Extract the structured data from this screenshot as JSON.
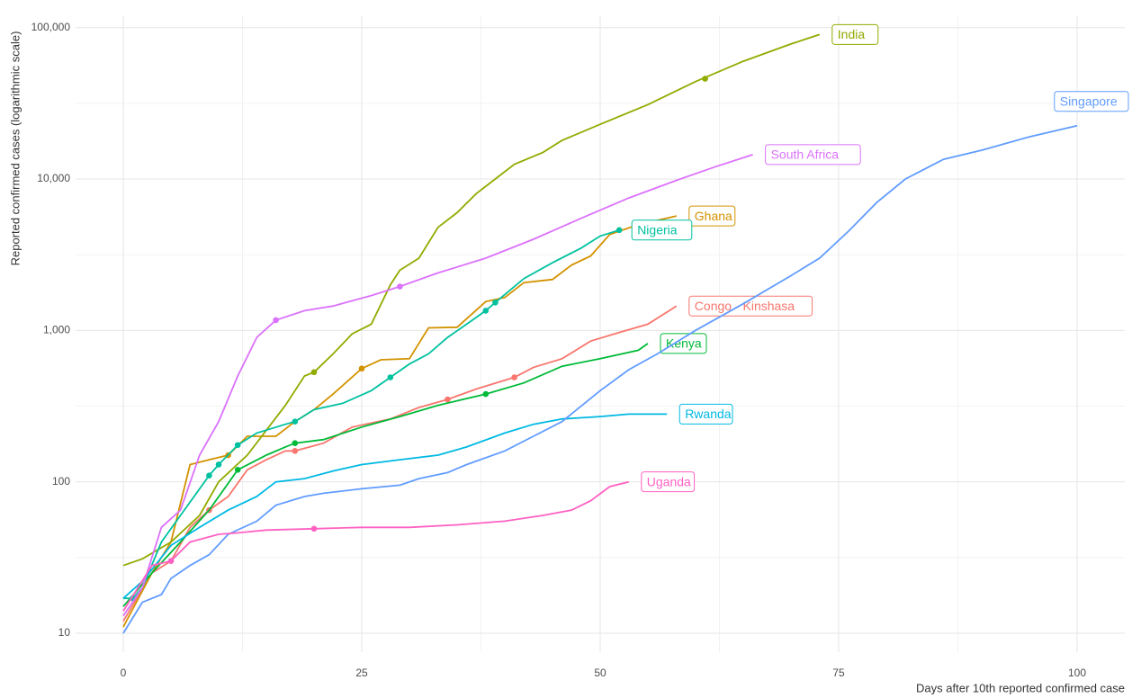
{
  "chart_data": {
    "type": "line",
    "x_label": "Days after 10th reported confirmed case",
    "y_label": "Reported confirmed cases (logarithmic scale)",
    "log_y": true,
    "grid": true,
    "xlim": [
      -5,
      105
    ],
    "xticks": [
      0,
      25,
      50,
      75,
      100
    ],
    "ylim": [
      7.5,
      120000
    ],
    "yticks": [
      10,
      100,
      {
        "value": 1000,
        "label": "1,000"
      },
      {
        "value": 10000,
        "label": "10,000"
      },
      {
        "value": 100000,
        "label": "100,000"
      }
    ],
    "series": [
      {
        "name": "Congo - Kinshasa",
        "color": "#F8766D",
        "x": [
          0,
          3,
          5,
          7,
          9,
          11,
          13,
          15,
          17,
          18,
          21,
          24,
          28,
          31,
          34,
          37,
          41,
          43,
          46,
          49,
          52,
          55,
          58
        ],
        "values": [
          12,
          25,
          30,
          50,
          65,
          80,
          120,
          140,
          160,
          160,
          180,
          230,
          260,
          310,
          350,
          410,
          490,
          570,
          650,
          850,
          970,
          1100,
          1450
        ],
        "dots": {
          "x": [
            9,
            18,
            34,
            41
          ],
          "values": [
            65,
            160,
            350,
            490
          ]
        }
      },
      {
        "name": "Ghana",
        "color": "#D39200",
        "x": [
          0,
          3,
          5,
          7,
          9,
          11,
          13,
          16,
          18,
          20,
          22,
          25,
          27,
          30,
          32,
          35,
          38,
          40,
          42,
          45,
          47,
          49,
          51,
          54,
          58
        ],
        "values": [
          11,
          25,
          40,
          130,
          140,
          150,
          200,
          200,
          250,
          300,
          380,
          560,
          640,
          650,
          1040,
          1050,
          1550,
          1650,
          2070,
          2170,
          2700,
          3100,
          4300,
          5000,
          5700
        ],
        "dots": {
          "x": [
            11,
            25
          ],
          "values": [
            150,
            560
          ]
        }
      },
      {
        "name": "India",
        "color": "#93AA00",
        "x": [
          0,
          2,
          5,
          8,
          10,
          13,
          17,
          19,
          20,
          22,
          24,
          26,
          28,
          29,
          31,
          33,
          35,
          37,
          39,
          41,
          44,
          46,
          50,
          55,
          60,
          65,
          70,
          73
        ],
        "values": [
          28,
          31,
          40,
          60,
          100,
          150,
          320,
          500,
          530,
          700,
          950,
          1100,
          2000,
          2500,
          3000,
          4800,
          6000,
          8000,
          10000,
          12500,
          15000,
          18000,
          23000,
          31000,
          44000,
          60000,
          78000,
          90000
        ],
        "dots": {
          "x": [
            20,
            61
          ],
          "values": [
            530,
            46000
          ]
        }
      },
      {
        "name": "Kenya",
        "color": "#00BA38",
        "x": [
          0,
          3,
          6,
          9,
          12,
          15,
          17,
          18,
          21,
          25,
          29,
          33,
          38,
          42,
          46,
          50,
          54,
          55
        ],
        "values": [
          15,
          25,
          40,
          65,
          120,
          150,
          170,
          180,
          190,
          230,
          270,
          320,
          380,
          450,
          580,
          650,
          740,
          820
        ],
        "dots": {
          "x": [
            12,
            18,
            38
          ],
          "values": [
            120,
            180,
            380
          ]
        }
      },
      {
        "name": "Nigeria",
        "color": "#00C19F",
        "x": [
          0,
          1,
          2,
          4,
          6,
          9,
          10,
          12,
          14,
          17,
          18,
          20,
          23,
          26,
          28,
          30,
          32,
          34,
          36,
          38,
          39,
          42,
          45,
          48,
          50,
          52
        ],
        "values": [
          17,
          17,
          20,
          40,
          60,
          110,
          130,
          175,
          210,
          240,
          250,
          300,
          330,
          400,
          490,
          600,
          700,
          900,
          1100,
          1350,
          1530,
          2200,
          2800,
          3500,
          4200,
          4600
        ],
        "dots": {
          "x": [
            1,
            9,
            10,
            12,
            18,
            28,
            38,
            39,
            52
          ],
          "values": [
            17,
            110,
            130,
            175,
            250,
            490,
            1350,
            1530,
            4600
          ]
        }
      },
      {
        "name": "Rwanda",
        "color": "#00B9E3",
        "x": [
          0,
          2,
          5,
          8,
          11,
          14,
          16,
          19,
          22,
          25,
          29,
          33,
          36,
          40,
          43,
          46,
          50,
          53,
          57
        ],
        "values": [
          17,
          22,
          38,
          50,
          65,
          80,
          100,
          105,
          118,
          130,
          140,
          150,
          170,
          210,
          240,
          260,
          270,
          280,
          280
        ]
      },
      {
        "name": "Singapore",
        "color": "#619CFF",
        "x": [
          0,
          2,
          4,
          5,
          7,
          9,
          11,
          14,
          16,
          19,
          21,
          25,
          29,
          31,
          34,
          36,
          40,
          43,
          46,
          50,
          53,
          56,
          60,
          65,
          70,
          73,
          76,
          79,
          82,
          86,
          90,
          95,
          100
        ],
        "values": [
          10,
          16,
          18,
          23,
          28,
          33,
          45,
          55,
          70,
          80,
          84,
          90,
          95,
          105,
          115,
          130,
          160,
          200,
          250,
          400,
          550,
          700,
          1000,
          1500,
          2300,
          3000,
          4500,
          7000,
          10000,
          13500,
          15500,
          19000,
          22500
        ]
      },
      {
        "name": "South Africa",
        "color": "#DB72FB",
        "x": [
          0,
          2,
          4,
          6,
          8,
          10,
          12,
          14,
          16,
          19,
          22,
          26,
          29,
          33,
          38,
          43,
          48,
          53,
          58,
          62,
          66
        ],
        "values": [
          13,
          20,
          50,
          65,
          150,
          250,
          500,
          900,
          1170,
          1350,
          1450,
          1700,
          1950,
          2400,
          3000,
          4000,
          5500,
          7500,
          9800,
          12000,
          14500
        ],
        "dots": {
          "x": [
            16,
            29
          ],
          "values": [
            1170,
            1950
          ]
        }
      },
      {
        "name": "Uganda",
        "color": "#FF61C3",
        "x": [
          0,
          3,
          5,
          7,
          10,
          12,
          15,
          20,
          25,
          30,
          35,
          40,
          44,
          47,
          49,
          51,
          53
        ],
        "values": [
          14,
          28,
          30,
          40,
          45,
          46,
          48,
          49,
          50,
          50,
          52,
          55,
          60,
          65,
          75,
          93,
          100
        ],
        "dots": {
          "x": [
            5,
            20
          ],
          "values": [
            30,
            49
          ]
        }
      }
    ]
  }
}
